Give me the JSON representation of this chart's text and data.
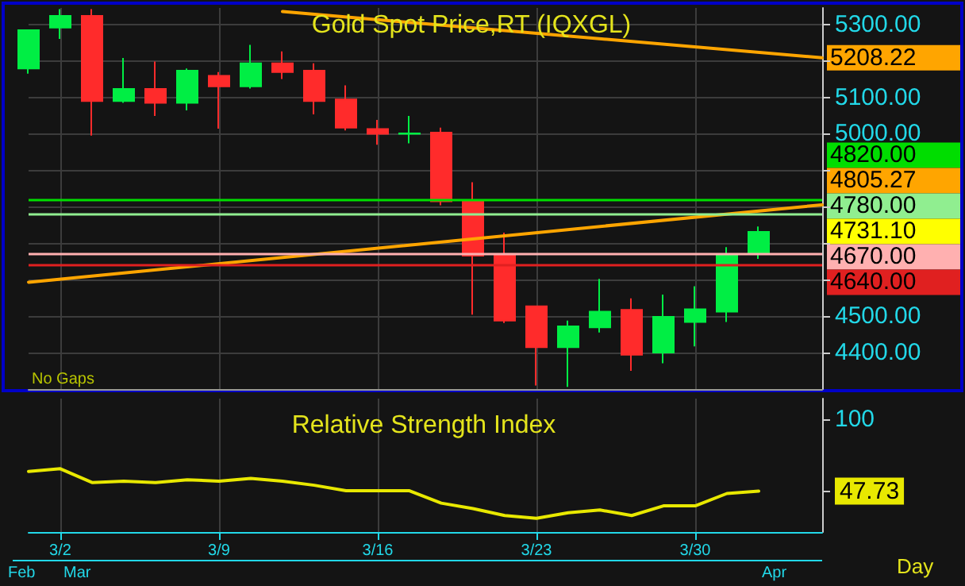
{
  "chart_data": [
    {
      "type": "candlestick",
      "title": "Gold Spot Price,RT (IQXGL)",
      "categories": [
        null,
        null,
        null,
        null,
        null,
        null,
        null,
        null,
        null,
        null,
        null,
        null,
        null,
        null,
        null,
        null,
        null,
        null,
        null,
        null,
        null,
        null,
        null,
        null,
        null,
        null
      ],
      "series": [
        {
          "type": "candlestick",
          "ohlc": [
            [
              5179,
              5286,
              5165,
              5284
            ],
            [
              5291,
              5342,
              5260,
              5323
            ],
            [
              5323,
              5342,
              4995,
              5090
            ],
            [
              5090,
              5208,
              5085,
              5123
            ],
            [
              5123,
              5198,
              5049,
              5085
            ],
            [
              5085,
              5179,
              5064,
              5173
            ],
            [
              5159,
              5169,
              5014,
              5130
            ],
            [
              5130,
              5244,
              5124,
              5193
            ],
            [
              5193,
              5226,
              5150,
              5169
            ],
            [
              5173,
              5193,
              5053,
              5090
            ],
            [
              5094,
              5133,
              5009,
              5017
            ],
            [
              5013,
              5038,
              4970,
              5000
            ],
            [
              5000,
              5049,
              4974,
              5001
            ],
            [
              5003,
              5017,
              4804,
              4815
            ],
            [
              4818,
              4867,
              4504,
              4666
            ],
            [
              4666,
              4729,
              4481,
              4488
            ],
            [
              4527,
              4527,
              4310,
              4415
            ],
            [
              4415,
              4488,
              4306,
              4472
            ],
            [
              4469,
              4602,
              4455,
              4512
            ],
            [
              4517,
              4549,
              4350,
              4394
            ],
            [
              4400,
              4559,
              4371,
              4498
            ],
            [
              4484,
              4582,
              4417,
              4519
            ],
            [
              4512,
              4689,
              4484,
              4668
            ],
            [
              4674,
              4746,
              4657,
              4731.1
            ],
            null,
            null
          ],
          "colors": [
            "#00ee44",
            "#00ee44",
            "#ff2b2b",
            "#00ee44",
            "#ff2b2b",
            "#00ee44",
            "#ff2b2b",
            "#00ee44",
            "#ff2b2b",
            "#ff2b2b",
            "#ff2b2b",
            "#ff2b2b",
            "#00ee44",
            "#ff2b2b",
            "#ff2b2b",
            "#ff2b2b",
            "#ff2b2b",
            "#00ee44",
            "#00ee44",
            "#ff2b2b",
            "#00ee44",
            "#00ee44",
            "#00ee44",
            "#00ee44",
            null,
            null
          ],
          "value_labels": [
            null,
            null,
            null,
            null,
            null,
            null,
            null,
            null,
            null,
            null,
            null,
            null,
            null,
            null,
            null,
            null,
            null,
            null,
            null,
            null,
            null,
            null,
            null,
            "4731.10",
            null,
            null
          ]
        },
        {
          "type": "line",
          "color": "#ffa500",
          "values": [
            null,
            null,
            null,
            null,
            null,
            null,
            null,
            null,
            5335,
            null,
            null,
            null,
            null,
            null,
            null,
            null,
            null,
            null,
            null,
            null,
            null,
            null,
            null,
            null,
            null,
            5208.22
          ],
          "value_labels": [
            null,
            null,
            null,
            null,
            null,
            null,
            null,
            null,
            null,
            null,
            null,
            null,
            null,
            null,
            null,
            null,
            null,
            null,
            null,
            null,
            null,
            null,
            null,
            null,
            null,
            "5208.22"
          ]
        },
        {
          "type": "line",
          "color": "#ffa500",
          "values": [
            4593,
            null,
            null,
            null,
            null,
            null,
            null,
            null,
            null,
            null,
            null,
            null,
            null,
            null,
            null,
            null,
            null,
            null,
            null,
            null,
            null,
            null,
            null,
            null,
            null,
            4805.27
          ],
          "value_labels": [
            null,
            null,
            null,
            null,
            null,
            null,
            null,
            null,
            null,
            null,
            null,
            null,
            null,
            null,
            null,
            null,
            null,
            null,
            null,
            null,
            null,
            null,
            null,
            null,
            null,
            "4805.27"
          ]
        }
      ],
      "ylim": [
        4300,
        5345
      ],
      "yticks": [
        {
          "value": 4400,
          "label": "4400.00"
        },
        {
          "value": 4500,
          "label": "4500.00"
        },
        {
          "value": 4600,
          "label": null
        },
        {
          "value": 4700,
          "label": null
        },
        {
          "value": 4800,
          "label": null
        },
        {
          "value": 4900,
          "label": null
        },
        {
          "value": 5000,
          "label": "5000.00"
        },
        {
          "value": 5100,
          "label": "5100.00"
        },
        {
          "value": 5200,
          "label": null
        },
        {
          "value": 5300,
          "label": "5300.00"
        }
      ],
      "ref_lines": [
        {
          "axis": "y",
          "value": 4820,
          "label": "4820.00",
          "color": "#00dd00"
        },
        {
          "axis": "y",
          "value": 4780,
          "label": "4780.00",
          "color": "#90ee90"
        },
        {
          "axis": "y",
          "value": 4670,
          "label": "4670.00",
          "color": "#ffb0b0"
        },
        {
          "axis": "y",
          "value": 4640,
          "label": "4640.00",
          "color": "#e02020"
        }
      ],
      "grid": true,
      "tick_labels": "y",
      "annotations": [
        "No Gaps"
      ]
    },
    {
      "type": "line",
      "title": "Relative Strength Index",
      "categories": [
        null,
        "3/2",
        null,
        null,
        null,
        null,
        "3/9",
        null,
        null,
        null,
        null,
        "3/16",
        null,
        null,
        null,
        null,
        "3/23",
        null,
        null,
        null,
        null,
        "3/30",
        null,
        null,
        null,
        null
      ],
      "series": [
        {
          "color": "#e8e800",
          "values": [
            62,
            64,
            54,
            55,
            54,
            56,
            55,
            57,
            55,
            52,
            48,
            48,
            48,
            39,
            35,
            30,
            28,
            32,
            34,
            30,
            37,
            37,
            46,
            47.73,
            null,
            null
          ]
        }
      ],
      "ylim": [
        18,
        115
      ],
      "yticks": [
        100,
        {
          "value": 47.73,
          "label": "47.73"
        }
      ],
      "grid": "x",
      "marker": "none",
      "annotations": [
        "Feb",
        "Mar",
        "Apr",
        "Day"
      ]
    }
  ]
}
